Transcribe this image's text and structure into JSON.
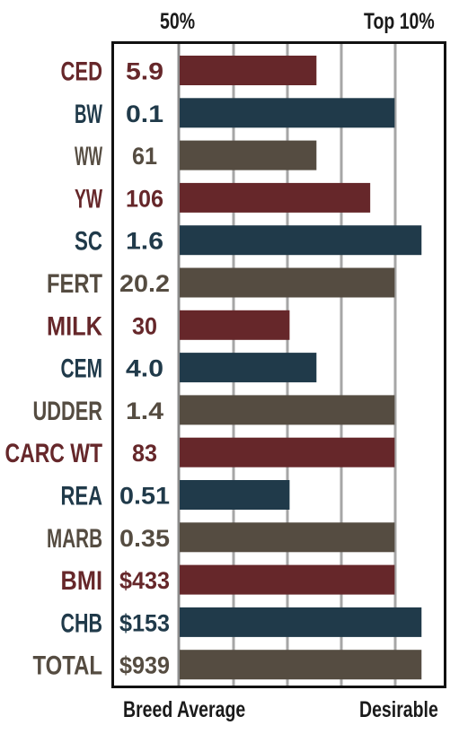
{
  "header": {
    "left_label": "50%",
    "right_label": "Top 10%"
  },
  "footer": {
    "left_label": "Breed Average",
    "right_label": "Desirable"
  },
  "colors": {
    "maroon": "#66272a",
    "navy": "#203a4a",
    "taupe": "#554c41",
    "grid": "#a6a6a6"
  },
  "chart_data": {
    "type": "bar",
    "orientation": "horizontal",
    "scale": [
      "Breed Average",
      "Desirable"
    ],
    "xlim": [
      0,
      1
    ],
    "grid": true,
    "categories": [
      "CED",
      "BW",
      "WW",
      "YW",
      "SC",
      "FERT",
      "MILK",
      "CEM",
      "UDDER",
      "CARC WT",
      "REA",
      "MARB",
      "BMI",
      "CHB",
      "TOTAL"
    ],
    "value_labels": [
      "5.9",
      "0.1",
      "61",
      "106",
      "1.6",
      "20.2",
      "30",
      "4.0",
      "1.4",
      "83",
      "0.51",
      "0.35",
      "$433",
      "$153",
      "$939"
    ],
    "bar_levels": [
      0.56,
      0.88,
      0.56,
      0.78,
      0.99,
      0.88,
      0.45,
      0.56,
      0.88,
      0.88,
      0.45,
      0.88,
      0.88,
      0.99,
      0.99
    ],
    "bar_colors": [
      "maroon",
      "navy",
      "taupe",
      "maroon",
      "navy",
      "taupe",
      "maroon",
      "navy",
      "taupe",
      "maroon",
      "navy",
      "taupe",
      "maroon",
      "navy",
      "taupe"
    ]
  }
}
